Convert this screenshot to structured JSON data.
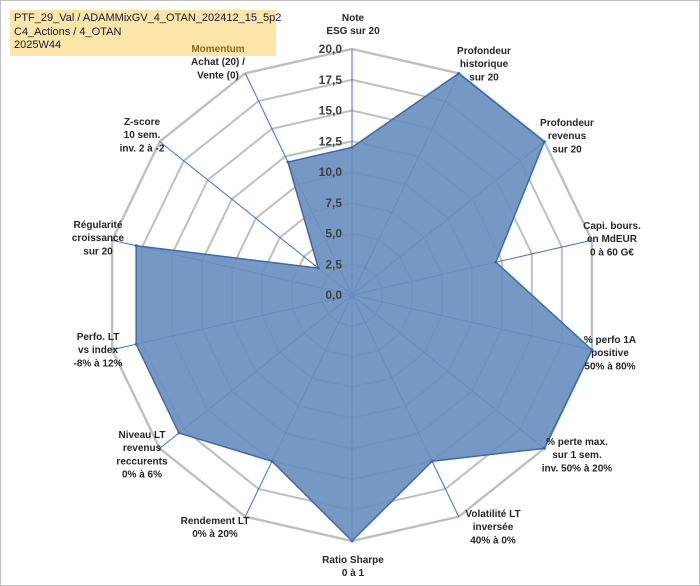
{
  "header": {
    "line1": "PTF_29_Val / ADAMMixGV_4_OTAN_202412_15_5p2",
    "line2": "C4_Actions / 4_OTAN",
    "line3": "2025W44"
  },
  "chart_data": {
    "type": "radar",
    "rlim": [
      0,
      20
    ],
    "ticks": [
      "0,0",
      "2,5",
      "5,0",
      "7,5",
      "10,0",
      "12,5",
      "15,0",
      "17,5",
      "20,0"
    ],
    "tick_values": [
      0,
      2.5,
      5,
      7.5,
      10,
      12.5,
      15,
      17.5,
      20
    ],
    "grid": true,
    "legend": "none",
    "fill_color": "#6a8fbf",
    "stroke_color": "#3e6aa8",
    "axis_color": "#3a6fd0",
    "grid_color": "#bfbfbf",
    "highlight_label_color": "#8b6b1b",
    "axes": [
      {
        "label": [
          "Note",
          "ESG sur 20"
        ],
        "value": 12.0
      },
      {
        "label": [
          "Profondeur",
          "historique",
          "sur 20"
        ],
        "value": 20.0
      },
      {
        "label": [
          "Profondeur",
          "revenus",
          "sur 20"
        ],
        "value": 20.0
      },
      {
        "label": [
          "Capi. bours.",
          "en MdEUR",
          "0 à 60 G€"
        ],
        "value": 12.0
      },
      {
        "label": [
          "% perfo 1A",
          "positive",
          "50% à 80%"
        ],
        "value": 20.0
      },
      {
        "label": [
          "% perte max.",
          "sur 1 sem.",
          "inv. 50% à 20%"
        ],
        "value": 20.0
      },
      {
        "label": [
          "Volatilité LT",
          "inversée",
          "40% à 0%"
        ],
        "value": 15.0
      },
      {
        "label": [
          "Ratio Sharpe",
          "0 à 1"
        ],
        "value": 20.0
      },
      {
        "label": [
          "Rendement LT",
          "0% à 20%"
        ],
        "value": 15.0
      },
      {
        "label": [
          "Niveau LT",
          "revenus",
          "reccurents",
          "0% à 6%"
        ],
        "value": 18.0
      },
      {
        "label": [
          "Perfo. LT",
          "vs index",
          "-8% à 12%"
        ],
        "value": 18.0
      },
      {
        "label": [
          "Régularité",
          "croissance",
          "sur 20"
        ],
        "value": 18.0
      },
      {
        "label": [
          "Z-score",
          "10 sem.",
          "inv. 2 à -2"
        ],
        "value": 3.5
      },
      {
        "label": [
          "Momentum",
          "Achat (20) /",
          "Vente (0)"
        ],
        "value": 12.0,
        "highlight_first_line": true
      }
    ]
  }
}
